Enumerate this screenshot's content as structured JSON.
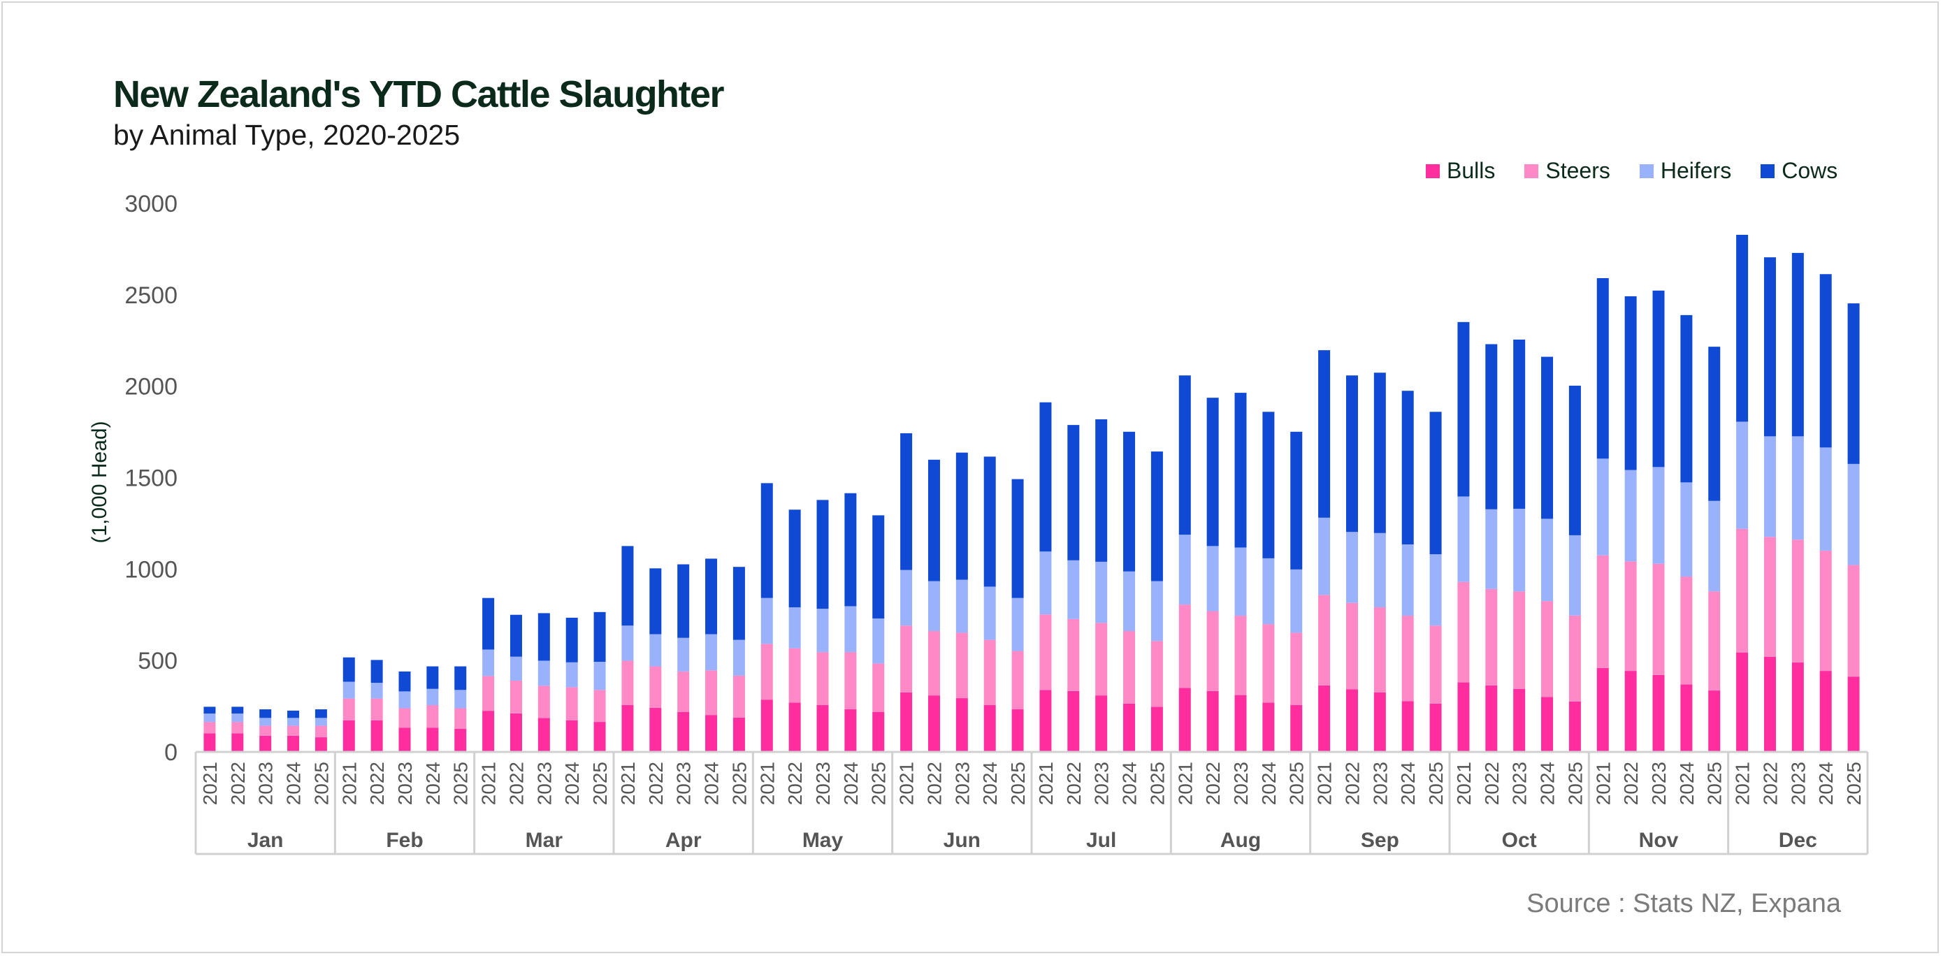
{
  "title": "New Zealand's YTD Cattle Slaughter",
  "subtitle": "by Animal Type, 2020-2025",
  "source": "Source : Stats NZ, Expana",
  "chart_data": {
    "type": "bar",
    "stacked": true,
    "title": "New Zealand's YTD Cattle Slaughter",
    "ylabel": "(1,000 Head)",
    "xlabel": "",
    "ylim": [
      0,
      3000
    ],
    "yticks": [
      "0",
      "500",
      "1000",
      "1500",
      "2000",
      "2500",
      "3000"
    ],
    "grid": false,
    "legend_position": "top-right",
    "months": [
      "Jan",
      "Feb",
      "Mar",
      "Apr",
      "May",
      "Jun",
      "Jul",
      "Aug",
      "Sep",
      "Oct",
      "Nov",
      "Dec"
    ],
    "years": [
      "2021",
      "2022",
      "2023",
      "2024",
      "2025"
    ],
    "series": [
      {
        "name": "Bulls",
        "color": "#ff2d9e",
        "values": [
          102,
          102,
          88,
          88,
          80,
          172,
          172,
          133,
          133,
          127,
          225,
          211,
          186,
          172,
          164,
          256,
          241,
          219,
          202,
          188,
          286,
          270,
          256,
          233,
          219,
          325,
          309,
          294,
          256,
          233,
          339,
          333,
          309,
          264,
          247,
          350,
          333,
          311,
          270,
          256,
          364,
          342,
          325,
          278,
          264,
          380,
          364,
          344,
          301,
          276,
          459,
          443,
          421,
          369,
          336,
          544,
          520,
          489,
          443,
          412
        ]
      },
      {
        "name": "Steers",
        "color": "#ff88c6",
        "values": [
          62,
          62,
          55,
          55,
          63,
          120,
          120,
          106,
          123,
          112,
          190,
          179,
          176,
          182,
          175,
          243,
          227,
          221,
          244,
          229,
          305,
          297,
          290,
          313,
          265,
          366,
          352,
          358,
          357,
          319,
          413,
          394,
          397,
          397,
          360,
          456,
          437,
          434,
          429,
          396,
          495,
          473,
          466,
          467,
          427,
          550,
          527,
          534,
          524,
          470,
          616,
          599,
          608,
          590,
          542,
          676,
          656,
          672,
          658,
          610
        ]
      },
      {
        "name": "Heifers",
        "color": "#9ab2fc",
        "values": [
          46,
          46,
          43,
          43,
          43,
          92,
          86,
          92,
          89,
          100,
          145,
          131,
          137,
          136,
          154,
          192,
          176,
          184,
          198,
          196,
          251,
          224,
          237,
          251,
          246,
          304,
          273,
          290,
          291,
          290,
          344,
          321,
          334,
          326,
          327,
          382,
          356,
          373,
          360,
          346,
          422,
          388,
          406,
          390,
          390,
          467,
          436,
          452,
          450,
          439,
          529,
          500,
          529,
          515,
          495,
          586,
          550,
          565,
          564,
          553
        ]
      },
      {
        "name": "Cows",
        "color": "#1049d4",
        "values": [
          37,
          37,
          47,
          40,
          47,
          133,
          125,
          109,
          123,
          129,
          282,
          229,
          260,
          244,
          272,
          435,
          360,
          402,
          413,
          399,
          628,
          534,
          595,
          618,
          564,
          748,
          664,
          695,
          711,
          650,
          816,
          740,
          779,
          764,
          709,
          871,
          811,
          846,
          801,
          753,
          916,
          856,
          877,
          840,
          779,
          954,
          903,
          925,
          886,
          818,
          987,
          950,
          965,
          915,
          843,
          1022,
          979,
          1003,
          948,
          878
        ]
      }
    ]
  }
}
